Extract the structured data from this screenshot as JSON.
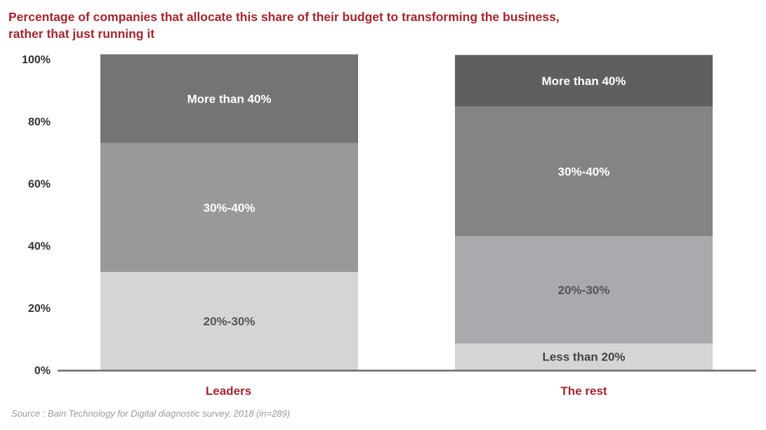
{
  "title_lines": [
    "Percentage of companies that allocate this share of their budget to transforming the business,",
    "rather that just running it"
  ],
  "source": "Source : Bain Technology for Digital diagnostic survey, 2018 (in=289)",
  "chart_data": {
    "type": "bar",
    "stacked": true,
    "categories": [
      "Leaders",
      "The rest"
    ],
    "ylim": [
      0,
      100
    ],
    "y_ticks": [
      "0%",
      "20%",
      "40%",
      "60%",
      "80%",
      "100%"
    ],
    "grid": false,
    "series": [
      {
        "name": "Less than 20%",
        "values": [
          0,
          8.5
        ],
        "color": "#d4d5d6",
        "label_color": "#444446"
      },
      {
        "name": "20%-30%",
        "values": [
          31.5,
          34.5
        ],
        "color": "#d4d5d6",
        "colors": [
          "#d4d5d6",
          "#a9aaad"
        ],
        "label_color": "#555557"
      },
      {
        "name": "30%-40%",
        "values": [
          41.5,
          41.7
        ],
        "colors": [
          "#98999b",
          "#838486"
        ],
        "label_color": "#ffffff"
      },
      {
        "name": "More than 40%",
        "values": [
          28.5,
          16.6
        ],
        "colors": [
          "#737476",
          "#5f5f61"
        ],
        "label_color": "#ffffff"
      }
    ],
    "category_color": "#a5252d",
    "axis_color": "#6b6b6b"
  }
}
